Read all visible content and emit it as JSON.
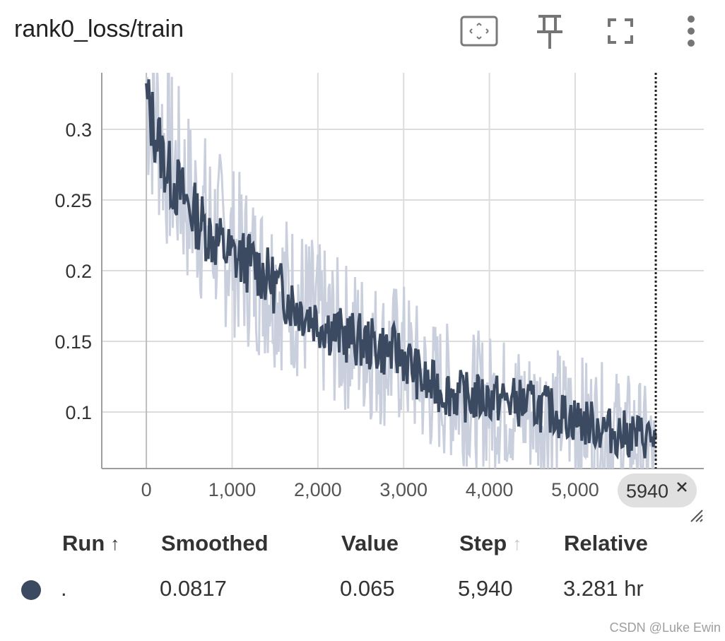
{
  "card": {
    "title": "rank0_loss/train"
  },
  "toolbar": {
    "fit_icon": "fit-domain-icon",
    "pin_icon": "pin-icon",
    "fullscreen_icon": "fullscreen-icon",
    "more_icon": "more-vert-icon"
  },
  "colors": {
    "smoothed": "#3b4a61",
    "raw": "#c9cfdc",
    "grid": "#dcdcdc",
    "axis": "#9e9e9e",
    "chip_bg": "#e0e0e0"
  },
  "chart_data": {
    "type": "line",
    "title": "rank0_loss/train",
    "xlabel": "",
    "ylabel": "",
    "xlim": [
      -520,
      6500
    ],
    "ylim": [
      0.06,
      0.34
    ],
    "x_ticks": [
      0,
      1000,
      2000,
      3000,
      4000,
      5000
    ],
    "x_tick_labels": [
      "0",
      "1,000",
      "2,000",
      "3,000",
      "4,000",
      "5,000"
    ],
    "y_ticks": [
      0.1,
      0.15,
      0.2,
      0.25,
      0.3
    ],
    "y_tick_labels": [
      "0.1",
      "0.15",
      "0.2",
      "0.25",
      "0.3"
    ],
    "grid": true,
    "cursor_step": 5940,
    "cursor_label": "5940",
    "series": [
      {
        "name": "Smoothed (.)",
        "role": "smoothed",
        "x": [
          0,
          250,
          500,
          750,
          1000,
          1250,
          1500,
          1750,
          2000,
          2250,
          2500,
          2750,
          3000,
          3250,
          3500,
          3750,
          4000,
          4250,
          4500,
          4750,
          5000,
          5250,
          5500,
          5750,
          5940
        ],
        "y": [
          0.32,
          0.27,
          0.245,
          0.225,
          0.21,
          0.205,
          0.19,
          0.175,
          0.165,
          0.155,
          0.15,
          0.145,
          0.14,
          0.12,
          0.115,
          0.11,
          0.11,
          0.108,
          0.105,
          0.1,
          0.095,
          0.09,
          0.085,
          0.083,
          0.0817
        ]
      },
      {
        "name": "Value (.)",
        "role": "raw",
        "x": [
          0,
          250,
          500,
          750,
          1000,
          1250,
          1500,
          1750,
          2000,
          2250,
          2500,
          2750,
          3000,
          3250,
          3500,
          3750,
          4000,
          4250,
          4500,
          4750,
          5000,
          5250,
          5500,
          5750,
          5940
        ],
        "y": [
          0.33,
          0.28,
          0.25,
          0.23,
          0.215,
          0.2,
          0.19,
          0.18,
          0.165,
          0.155,
          0.15,
          0.14,
          0.14,
          0.12,
          0.115,
          0.11,
          0.108,
          0.105,
          0.1,
          0.1,
          0.095,
          0.09,
          0.085,
          0.08,
          0.065
        ]
      }
    ]
  },
  "table": {
    "headers": {
      "run": "Run",
      "run_arrow": "↑",
      "smoothed": "Smoothed",
      "value": "Value",
      "step": "Step",
      "step_arrow": "↑",
      "relative": "Relative"
    },
    "rows": [
      {
        "run": ".",
        "smoothed": "0.0817",
        "value": "0.065",
        "step": "5,940",
        "relative": "3.281 hr"
      }
    ]
  },
  "watermark": "CSDN @Luke Ewin"
}
